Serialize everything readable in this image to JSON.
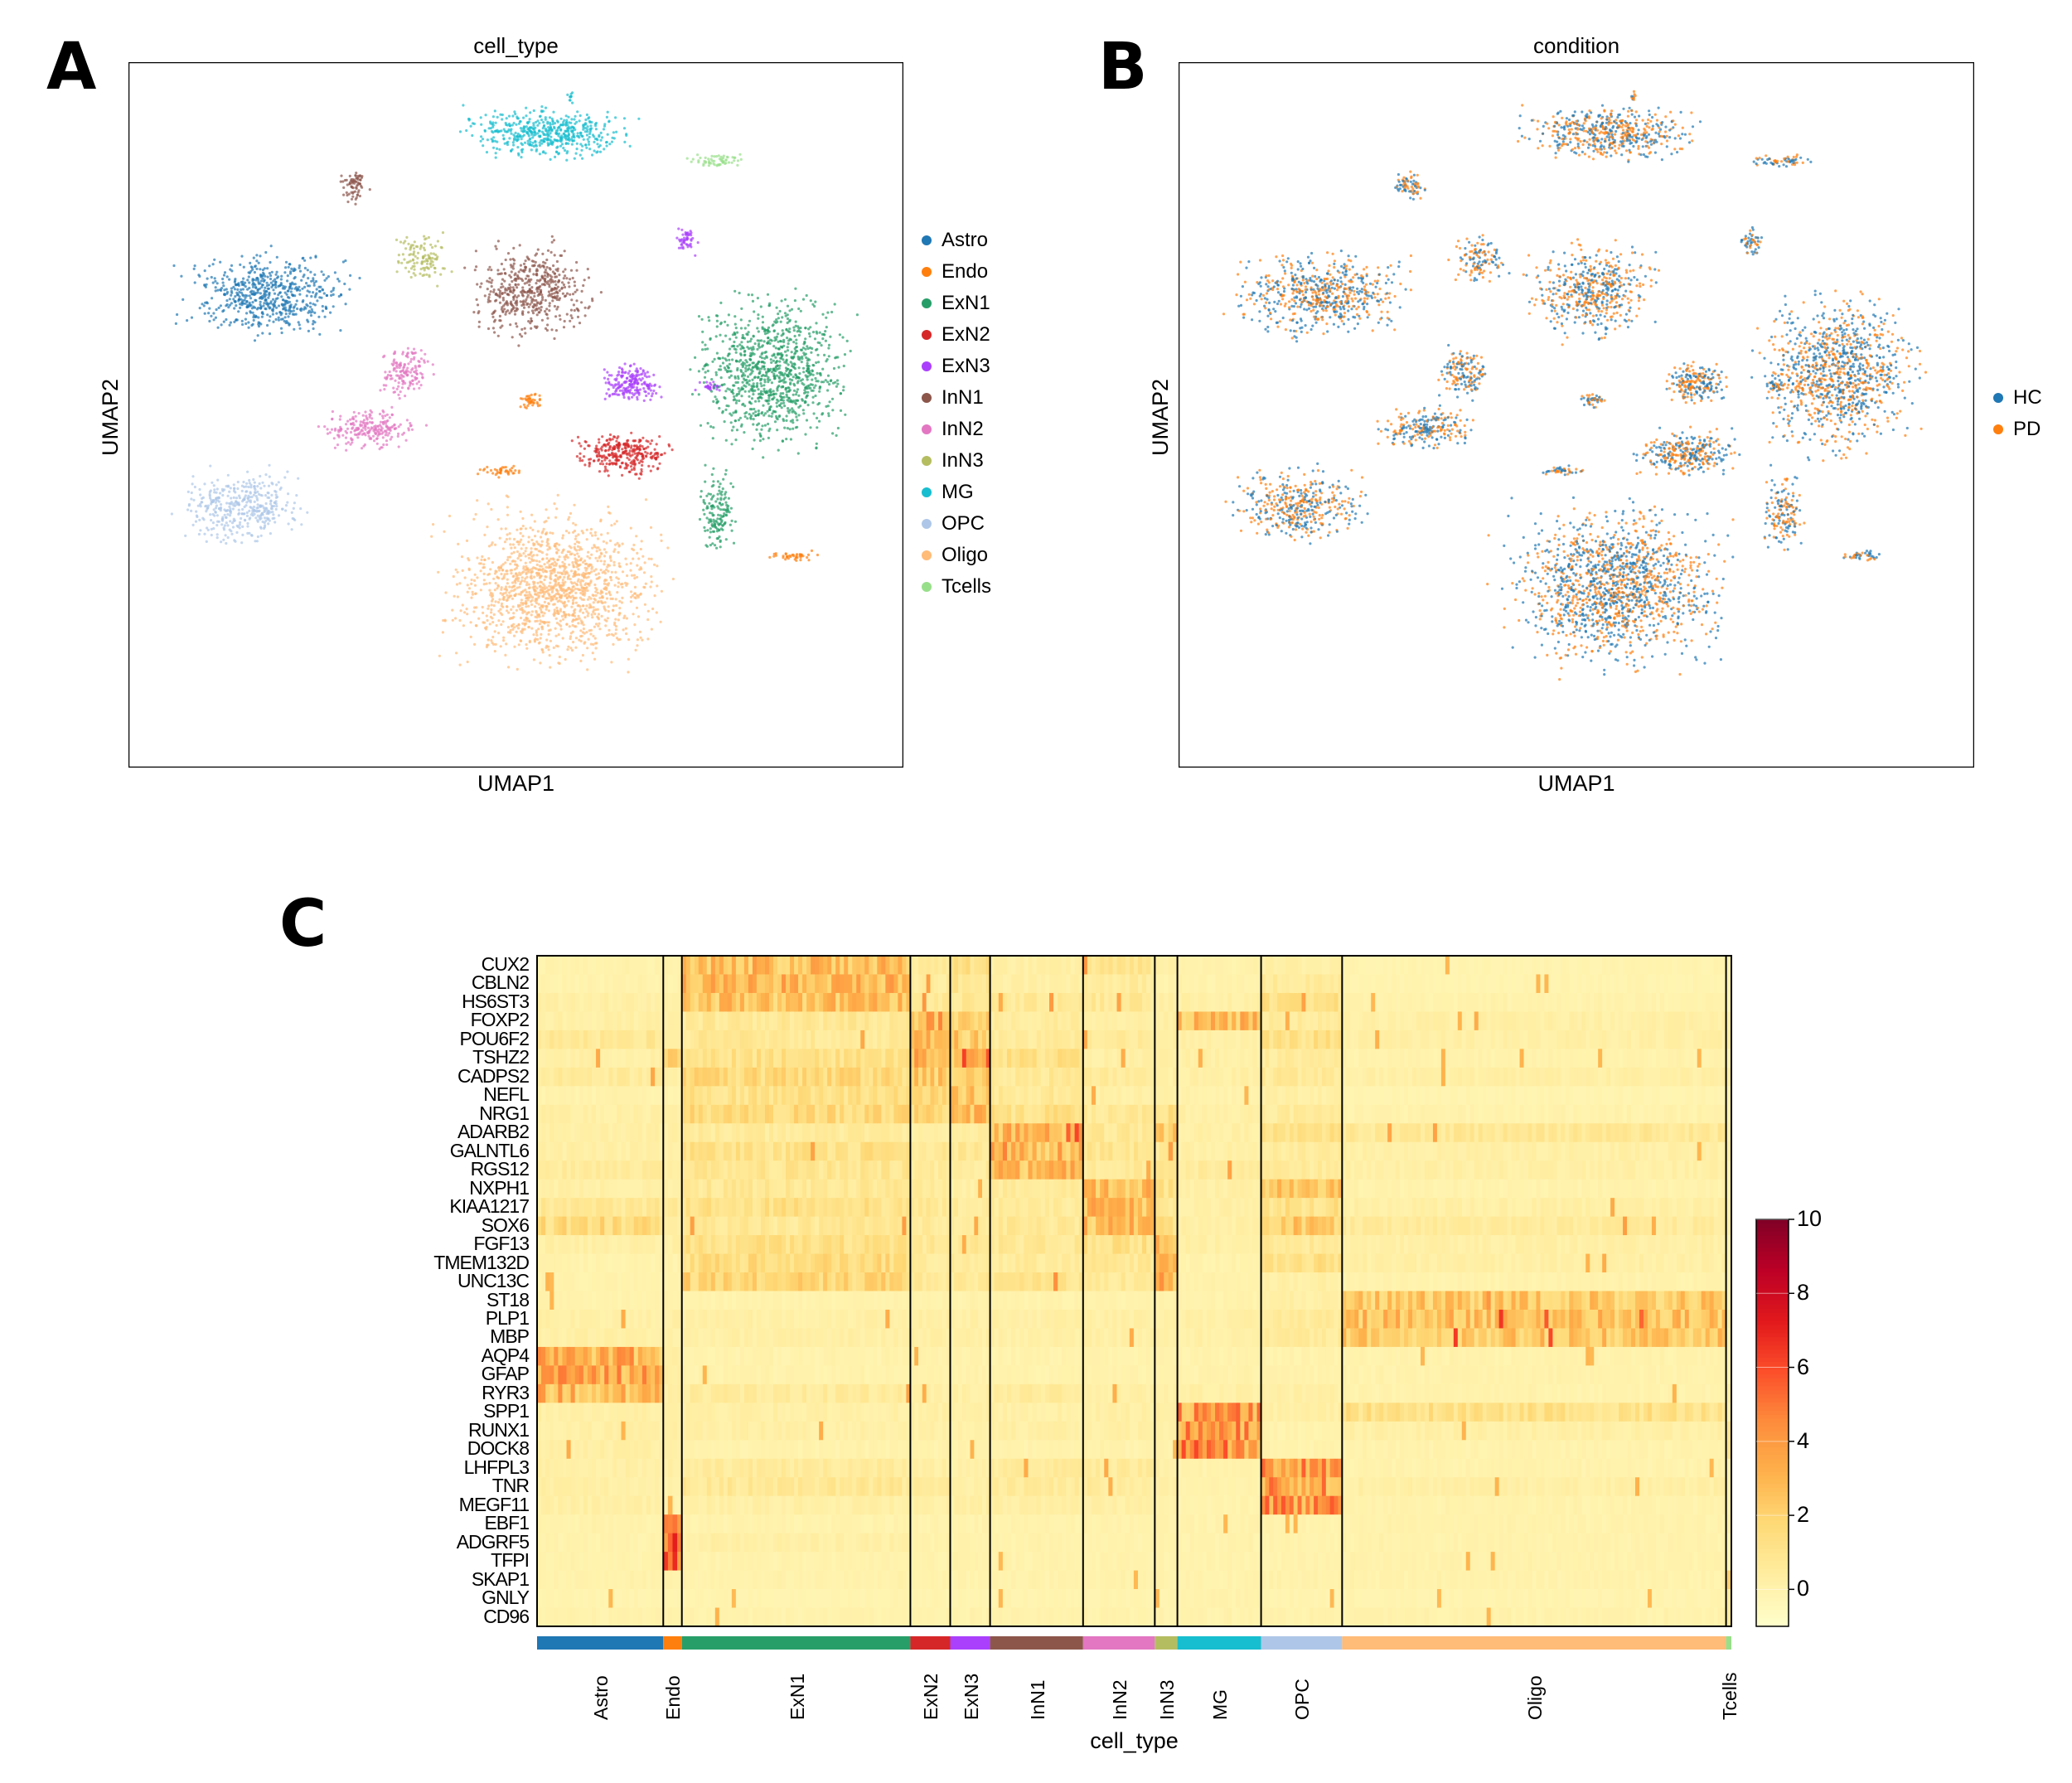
{
  "panels": {
    "a_letter": "A",
    "b_letter": "B",
    "c_letter": "C"
  },
  "chart_data": [
    {
      "type": "scatter",
      "title": "cell_type",
      "xlabel": "UMAP1",
      "ylabel": "UMAP2",
      "grid": false,
      "legend_placement": "right",
      "legend": [
        {
          "label": "Astro",
          "color": "#1f77b4"
        },
        {
          "label": "Endo",
          "color": "#ff7f0e"
        },
        {
          "label": "ExN1",
          "color": "#279e68"
        },
        {
          "label": "ExN2",
          "color": "#d62728"
        },
        {
          "label": "ExN3",
          "color": "#aa40fc"
        },
        {
          "label": "InN1",
          "color": "#8c564b"
        },
        {
          "label": "InN2",
          "color": "#e377c2"
        },
        {
          "label": "InN3",
          "color": "#b5bd61"
        },
        {
          "label": "MG",
          "color": "#17becf"
        },
        {
          "label": "OPC",
          "color": "#aec7e8"
        },
        {
          "label": "Oligo",
          "color": "#ffbb78"
        },
        {
          "label": "Tcells",
          "color": "#98df8a"
        }
      ]
    },
    {
      "type": "scatter",
      "title": "condition",
      "xlabel": "UMAP1",
      "ylabel": "UMAP2",
      "grid": false,
      "legend_placement": "right",
      "legend": [
        {
          "label": "HC",
          "color": "#1f77b4"
        },
        {
          "label": "PD",
          "color": "#ff7f0e"
        }
      ]
    },
    {
      "type": "heatmap",
      "xlabel": "cell_type",
      "groups": [
        "Astro",
        "Endo",
        "ExN1",
        "ExN2",
        "ExN3",
        "InN1",
        "InN2",
        "InN3",
        "MG",
        "OPC",
        "Oligo",
        "Tcells"
      ],
      "group_relative_size": [
        95,
        14,
        172,
        30,
        30,
        70,
        54,
        17,
        63,
        61,
        289,
        4
      ],
      "genes": [
        "CUX2",
        "CBLN2",
        "HS6ST3",
        "FOXP2",
        "POU6F2",
        "TSHZ2",
        "CADPS2",
        "NEFL",
        "NRG1",
        "ADARB2",
        "GALNTL6",
        "RGS12",
        "NXPH1",
        "KIAA1217",
        "SOX6",
        "FGF13",
        "TMEM132D",
        "UNC13C",
        "ST18",
        "PLP1",
        "MBP",
        "AQP4",
        "GFAP",
        "RYR3",
        "SPP1",
        "RUNX1",
        "DOCK8",
        "LHFPL3",
        "TNR",
        "MEGF11",
        "EBF1",
        "ADGRF5",
        "TFPI",
        "SKAP1",
        "GNLY",
        "CD96"
      ],
      "values": [
        [
          0.3,
          0.3,
          3,
          1,
          1.5,
          0.5,
          1.2,
          0.5,
          0.3,
          0.5,
          0.2,
          0.3
        ],
        [
          0.3,
          0.3,
          3.2,
          0.8,
          1.2,
          0.5,
          0.8,
          0.3,
          0.3,
          0.8,
          0.2,
          0.3
        ],
        [
          0.5,
          0.5,
          2.8,
          1,
          1,
          1,
          1,
          0.5,
          0.5,
          1.5,
          0.3,
          0.3
        ],
        [
          0.5,
          0.5,
          1,
          3.5,
          2,
          0.8,
          0.5,
          0.5,
          3,
          0.8,
          0.5,
          0.5
        ],
        [
          1,
          0.5,
          1,
          3.5,
          2.5,
          0.8,
          0.8,
          0.5,
          0.5,
          1.5,
          0.5,
          0.5
        ],
        [
          0.5,
          2,
          1.5,
          3.5,
          3,
          1.5,
          0.5,
          0.5,
          0.5,
          0.8,
          0.3,
          0.3
        ],
        [
          0.8,
          0.5,
          1.8,
          2.5,
          3,
          1,
          0.8,
          0.5,
          0.5,
          1,
          0.5,
          0.5
        ],
        [
          0.3,
          0.3,
          1.5,
          2,
          2.8,
          1,
          0.5,
          0.5,
          0.3,
          0.5,
          0.2,
          0.3
        ],
        [
          0.5,
          0.5,
          1.8,
          2,
          3,
          1.5,
          1,
          1.5,
          0.5,
          0.8,
          0.3,
          0.3
        ],
        [
          0.5,
          0.5,
          0.8,
          0.5,
          0.8,
          3.2,
          1,
          2.5,
          0.5,
          1.5,
          1,
          0.5
        ],
        [
          0.5,
          0.5,
          1.5,
          1,
          1,
          3.2,
          1.2,
          1,
          0.5,
          0.8,
          0.5,
          0.5
        ],
        [
          0.8,
          0.5,
          1.2,
          0.8,
          0.8,
          3,
          1,
          1,
          0.8,
          0.8,
          0.5,
          0.5
        ],
        [
          0.5,
          0.5,
          1,
          0.8,
          0.5,
          0.8,
          3.2,
          1.5,
          0.5,
          2.5,
          0.3,
          0.3
        ],
        [
          1,
          0.8,
          1.5,
          1,
          0.8,
          0.8,
          3,
          1,
          0.5,
          1.5,
          0.5,
          0.5
        ],
        [
          1.8,
          0.5,
          1,
          0.8,
          0.8,
          1,
          3,
          1.5,
          0.5,
          2.5,
          0.8,
          0.5
        ],
        [
          0.5,
          0.5,
          1.5,
          1,
          1,
          1,
          1.5,
          4,
          0.5,
          1,
          0.5,
          0.5
        ],
        [
          0.3,
          0.3,
          1.8,
          0.8,
          0.8,
          0.8,
          1,
          3,
          0.3,
          1.5,
          0.5,
          0.3
        ],
        [
          0.3,
          0.3,
          2,
          1,
          1,
          1.2,
          1,
          3.5,
          0.3,
          0.5,
          0.3,
          0.3
        ],
        [
          0.3,
          0.3,
          0.3,
          0.3,
          0.3,
          0.3,
          0.3,
          0.3,
          0.3,
          0.5,
          2.5,
          0.3
        ],
        [
          0.5,
          0.5,
          0.5,
          0.5,
          0.5,
          0.5,
          0.5,
          0.5,
          0.5,
          0.8,
          2.8,
          0.5
        ],
        [
          0.5,
          0.5,
          0.5,
          0.5,
          0.5,
          0.5,
          0.5,
          0.5,
          0.5,
          0.8,
          2.6,
          0.5
        ],
        [
          3.5,
          0.5,
          0.3,
          0.3,
          0.3,
          0.3,
          0.3,
          0.3,
          0.3,
          0.3,
          0.3,
          0.3
        ],
        [
          3.8,
          0.5,
          0.3,
          0.3,
          0.3,
          0.3,
          0.3,
          0.3,
          0.3,
          0.3,
          0.3,
          0.3
        ],
        [
          3.3,
          0.5,
          0.8,
          0.5,
          0.5,
          0.8,
          0.5,
          0.5,
          0.5,
          0.5,
          0.3,
          0.5
        ],
        [
          0.5,
          0.5,
          0.5,
          0.5,
          0.5,
          0.5,
          0.5,
          0.5,
          4,
          0.5,
          1.5,
          0.5
        ],
        [
          0.5,
          0.5,
          0.5,
          0.5,
          0.5,
          0.5,
          0.5,
          0.5,
          4.2,
          0.3,
          0.5,
          1
        ],
        [
          0.5,
          0.5,
          0.3,
          0.3,
          0.3,
          0.3,
          0.3,
          0.3,
          4.5,
          0.3,
          0.3,
          1
        ],
        [
          0.5,
          0.5,
          0.8,
          0.5,
          0.5,
          0.8,
          0.8,
          0.5,
          0.3,
          4,
          0.3,
          0.3
        ],
        [
          0.5,
          0.3,
          1,
          0.8,
          0.5,
          0.8,
          0.8,
          0.5,
          0.3,
          4,
          0.5,
          0.3
        ],
        [
          0.5,
          0.3,
          0.5,
          0.5,
          0.5,
          0.5,
          0.5,
          0.3,
          0.3,
          4.2,
          0.3,
          0.3
        ],
        [
          0.3,
          5,
          0.3,
          0.3,
          0.3,
          0.3,
          0.3,
          0.3,
          0.3,
          0.3,
          0.3,
          0.5
        ],
        [
          0.3,
          7,
          0.5,
          0.3,
          0.3,
          0.3,
          0.3,
          0.3,
          0.3,
          0.3,
          0.3,
          0.3
        ],
        [
          0.3,
          5,
          0.3,
          0.3,
          0.3,
          0.3,
          0.3,
          0.3,
          0.3,
          0.3,
          0.3,
          0.3
        ],
        [
          0.3,
          0.3,
          0.3,
          0.3,
          0.3,
          0.3,
          0.3,
          0.3,
          0.3,
          0.3,
          0.3,
          4
        ],
        [
          0.2,
          0.2,
          0.2,
          0.2,
          0.2,
          0.2,
          0.2,
          0.2,
          0.3,
          0.2,
          0.2,
          1
        ],
        [
          0.3,
          0.3,
          0.3,
          0.3,
          0.3,
          0.3,
          0.3,
          0.3,
          0.3,
          0.3,
          0.3,
          1.5
        ]
      ],
      "colormap": "YlOrRd",
      "colorbar": {
        "range": [
          -1,
          10
        ],
        "ticks": [
          "0",
          "2",
          "4",
          "6",
          "8",
          "10"
        ]
      }
    }
  ]
}
